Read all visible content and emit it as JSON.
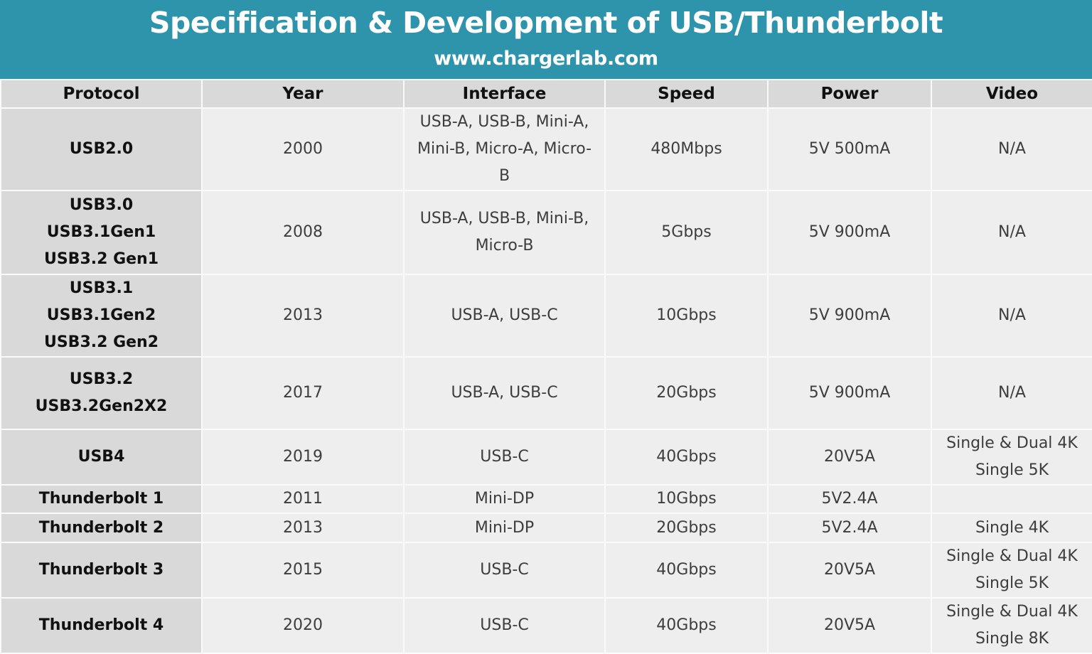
{
  "banner": {
    "title": "Specification & Development of USB/Thunderbolt",
    "subtitle": "www.chargerlab.com",
    "background_color": "#2e94ab"
  },
  "table": {
    "headers": [
      "Protocol",
      "Year",
      "Interface",
      "Speed",
      "Power",
      "Video"
    ],
    "rows": [
      {
        "protocol": [
          "USB2.0"
        ],
        "year": "2000",
        "interface": [
          "USB-A, USB-B, Mini-A,",
          "Mini-B, Micro-A, Micro-",
          "B"
        ],
        "speed": "480Mbps",
        "power": "5V 500mA",
        "video": [
          "N/A"
        ]
      },
      {
        "protocol": [
          "USB3.0",
          "USB3.1Gen1",
          "USB3.2 Gen1"
        ],
        "year": "2008",
        "interface": [
          "USB-A, USB-B, Mini-B,",
          "Micro-B"
        ],
        "speed": "5Gbps",
        "power": "5V 900mA",
        "video": [
          "N/A"
        ]
      },
      {
        "protocol": [
          "USB3.1",
          "USB3.1Gen2",
          "USB3.2 Gen2"
        ],
        "year": "2013",
        "interface": [
          "USB-A, USB-C"
        ],
        "speed": "10Gbps",
        "power": "5V 900mA",
        "video": [
          "N/A"
        ]
      },
      {
        "protocol": [
          "USB3.2",
          "USB3.2Gen2X2"
        ],
        "year": "2017",
        "interface": [
          "USB-A, USB-C"
        ],
        "speed": "20Gbps",
        "power": "5V 900mA",
        "video": [
          "N/A"
        ]
      },
      {
        "protocol": [
          "USB4"
        ],
        "year": "2019",
        "interface": [
          "USB-C"
        ],
        "speed": "40Gbps",
        "power": "20V5A",
        "video": [
          "Single & Dual 4K",
          "Single 5K"
        ]
      },
      {
        "protocol": [
          "Thunderbolt 1"
        ],
        "year": "2011",
        "interface": [
          "Mini-DP"
        ],
        "speed": "10Gbps",
        "power": "5V2.4A",
        "video": [
          ""
        ]
      },
      {
        "protocol": [
          "Thunderbolt 2"
        ],
        "year": "2013",
        "interface": [
          "Mini-DP"
        ],
        "speed": "20Gbps",
        "power": "5V2.4A",
        "video": [
          "Single 4K"
        ]
      },
      {
        "protocol": [
          "Thunderbolt 3"
        ],
        "year": "2015",
        "interface": [
          "USB-C"
        ],
        "speed": "40Gbps",
        "power": "20V5A",
        "video": [
          "Single & Dual 4K",
          "Single 5K"
        ]
      },
      {
        "protocol": [
          "Thunderbolt 4"
        ],
        "year": "2020",
        "interface": [
          "USB-C"
        ],
        "speed": "40Gbps",
        "power": "20V5A",
        "video": [
          "Single & Dual 4K",
          "Single 8K"
        ]
      }
    ]
  }
}
